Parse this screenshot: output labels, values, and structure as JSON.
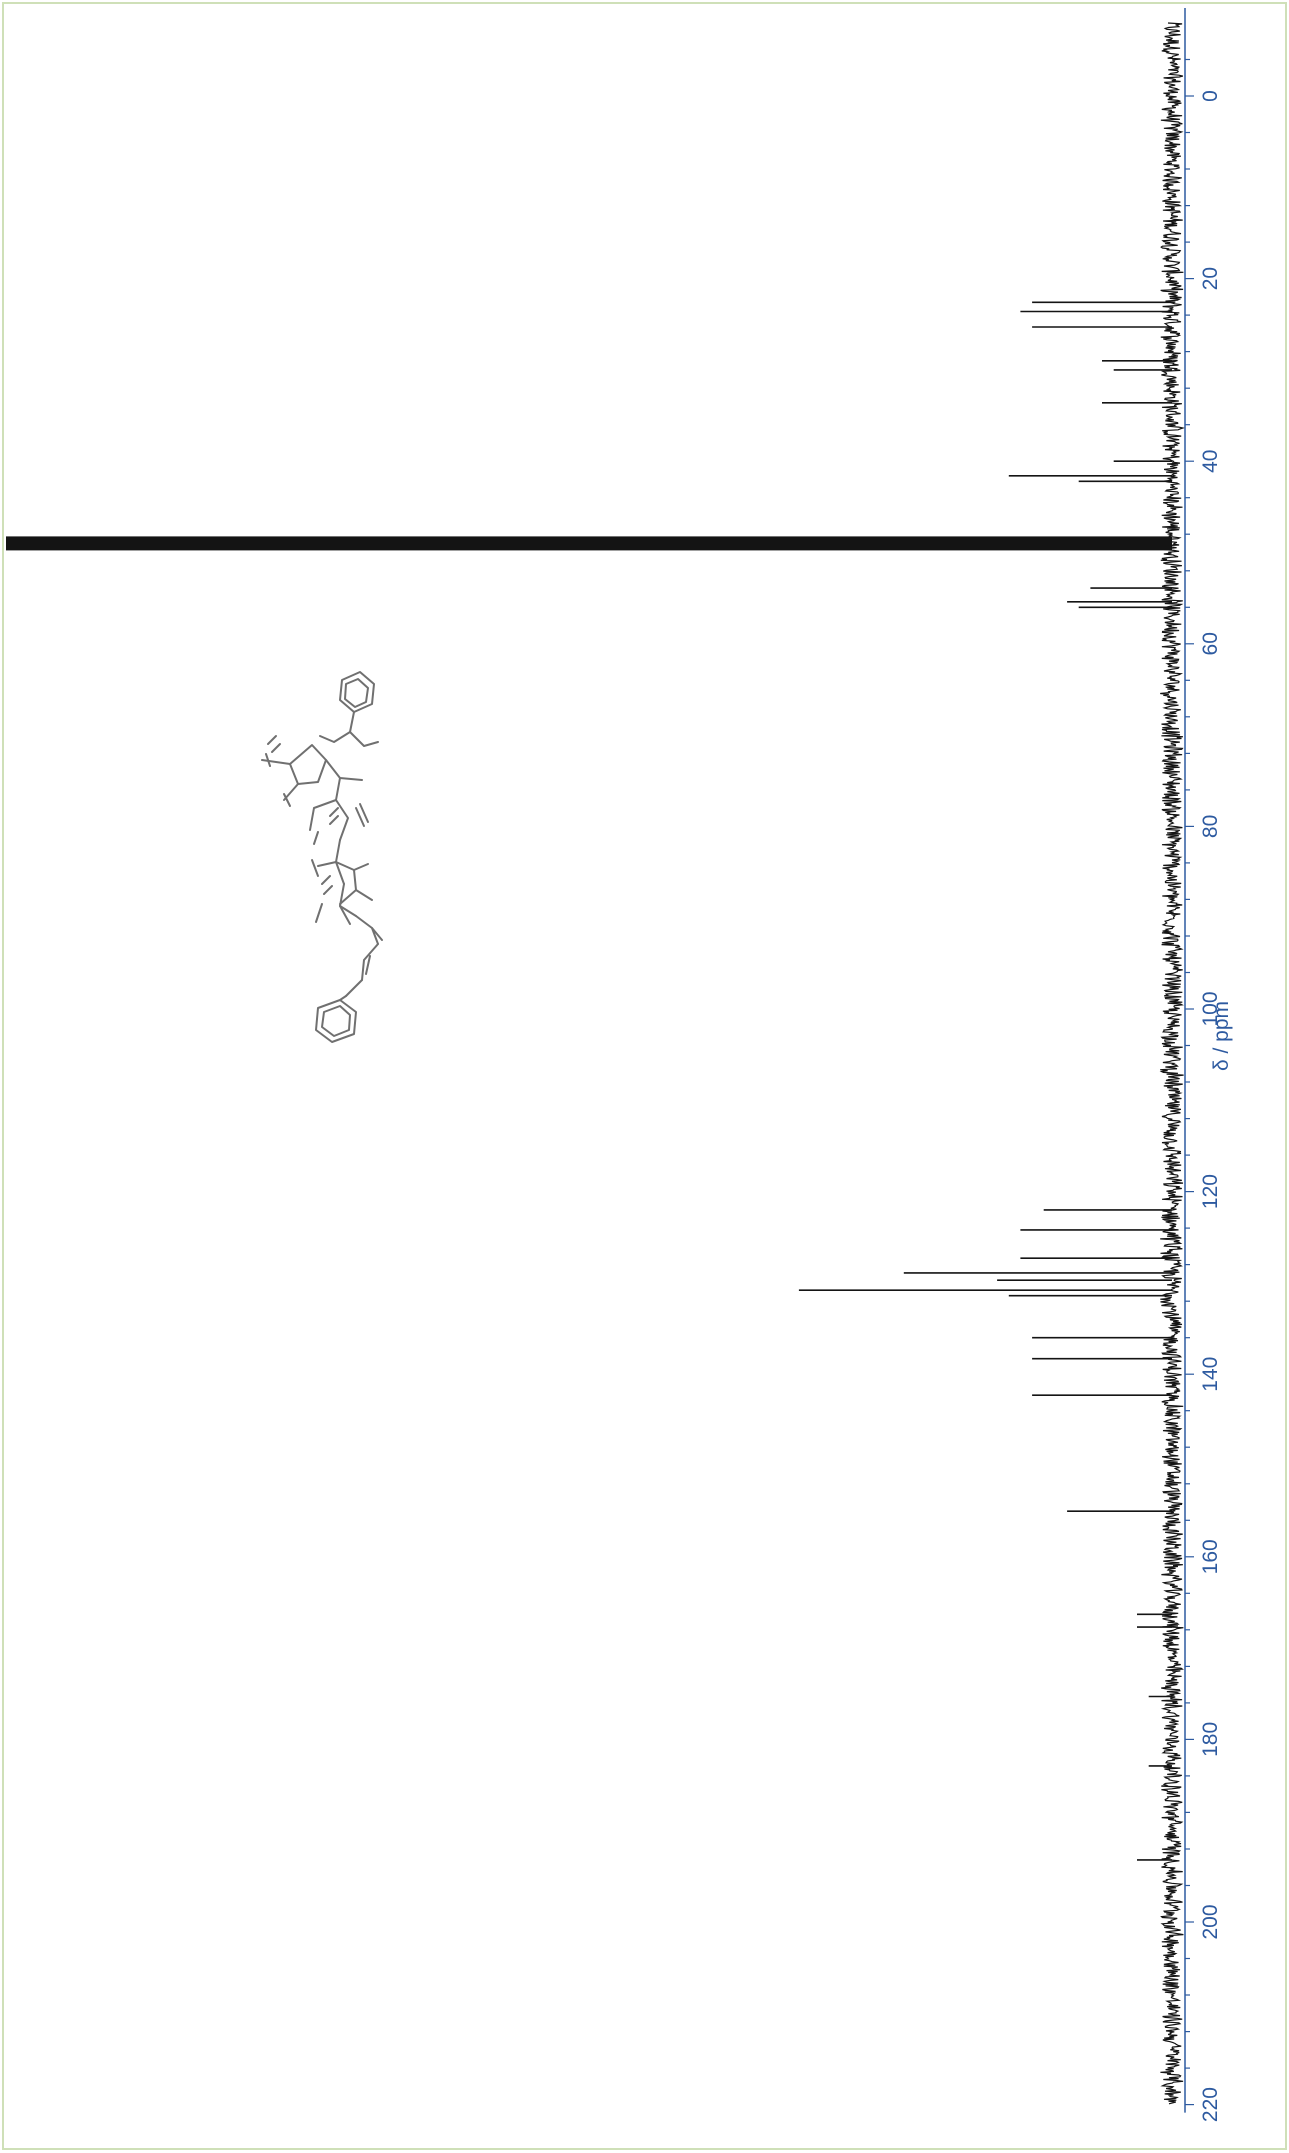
{
  "chart_data": {
    "type": "line",
    "title": "",
    "xlabel": "δ / ppm",
    "ylabel": "",
    "orientation": "rotated-90-clockwise",
    "xlim": [
      -8,
      220
    ],
    "x_ticks": [
      0,
      20,
      40,
      60,
      80,
      100,
      120,
      140,
      160,
      180,
      200,
      220
    ],
    "x_tick_labels": [
      "0",
      "20",
      "40",
      "60",
      "80",
      "100",
      "120",
      "140",
      "160",
      "180",
      "200",
      "220"
    ],
    "grid": false,
    "legend": "none",
    "series": [
      {
        "peaks": [
          {
            "x": 22.6,
            "intensity": 0.12
          },
          {
            "x": 23.6,
            "intensity": 0.13
          },
          {
            "x": 25.3,
            "intensity": 0.12
          },
          {
            "x": 29.0,
            "intensity": 0.06
          },
          {
            "x": 30.0,
            "intensity": 0.05
          },
          {
            "x": 33.6,
            "intensity": 0.06
          },
          {
            "x": 40.0,
            "intensity": 0.05
          },
          {
            "x": 41.6,
            "intensity": 0.14
          },
          {
            "x": 42.2,
            "intensity": 0.08
          },
          {
            "x": 49.0,
            "intensity": 1.0
          },
          {
            "x": 53.9,
            "intensity": 0.07
          },
          {
            "x": 55.4,
            "intensity": 0.09
          },
          {
            "x": 56.0,
            "intensity": 0.08
          },
          {
            "x": 122.0,
            "intensity": 0.11
          },
          {
            "x": 124.2,
            "intensity": 0.13
          },
          {
            "x": 127.3,
            "intensity": 0.13
          },
          {
            "x": 128.9,
            "intensity": 0.23
          },
          {
            "x": 129.7,
            "intensity": 0.15
          },
          {
            "x": 130.8,
            "intensity": 0.32
          },
          {
            "x": 131.4,
            "intensity": 0.14
          },
          {
            "x": 136.0,
            "intensity": 0.12
          },
          {
            "x": 138.3,
            "intensity": 0.12
          },
          {
            "x": 142.3,
            "intensity": 0.12
          },
          {
            "x": 155.0,
            "intensity": 0.09
          },
          {
            "x": 166.3,
            "intensity": 0.03
          },
          {
            "x": 167.7,
            "intensity": 0.03
          },
          {
            "x": 175.3,
            "intensity": 0.02
          },
          {
            "x": 182.9,
            "intensity": 0.02
          },
          {
            "x": 193.2,
            "intensity": 0.03
          }
        ]
      }
    ]
  },
  "colors": {
    "spectrum": "#141414",
    "axis": "#2d5aa0",
    "border": "#cfe0b8",
    "structure": "#707070"
  },
  "structure_icon": "molecule-structure-sketch"
}
